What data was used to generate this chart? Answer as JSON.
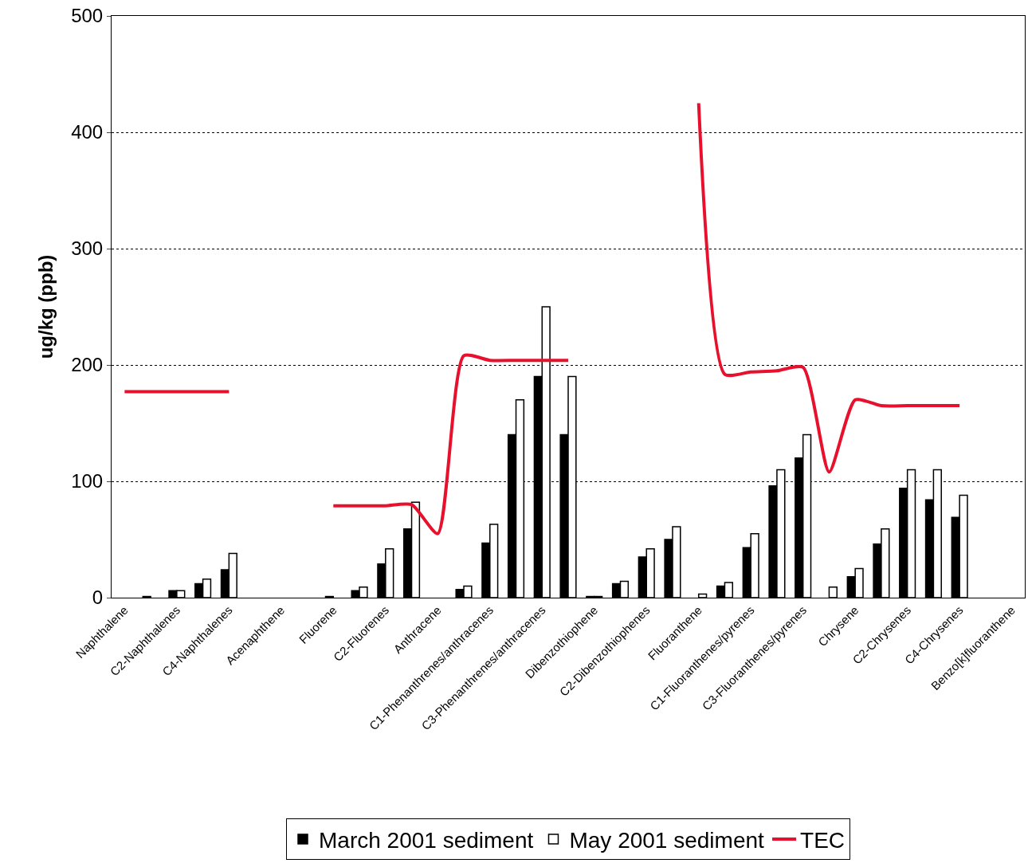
{
  "chart_data": {
    "type": "bar",
    "ylabel": "ug/kg (ppb)",
    "categories": [
      "Naphthalene",
      null,
      "C2-Naphthalenes",
      null,
      "C4-Naphthalenes",
      null,
      "Acenaphthene",
      null,
      "Fluorene",
      null,
      "C2-Fluorenes",
      null,
      "Anthracene",
      null,
      "C1-Phenanthrenes/anthracenes",
      null,
      "C3-Phenanthrenes/anthracenes",
      null,
      "Dibenzothiophene",
      null,
      "C2-Dibenzothiophenes",
      null,
      "Fluoranthene",
      null,
      "C1-Fluoranthenes/pyrenes",
      null,
      "C3-Fluoranthenes/pyrenes",
      null,
      "Chrysene",
      null,
      "C2-Chrysenes",
      null,
      "C4-Chrysenes",
      null,
      "Benzo[k]fluoranthene"
    ],
    "series": [
      {
        "name": "March 2001 sediment",
        "color": "#000000",
        "values": [
          null,
          1,
          6,
          12,
          24,
          null,
          null,
          null,
          1,
          6,
          29,
          59,
          null,
          7,
          47,
          140,
          190,
          140,
          1,
          12,
          35,
          50,
          null,
          10,
          43,
          96,
          120,
          null,
          18,
          46,
          94,
          84,
          69,
          null,
          null
        ]
      },
      {
        "name": "May 2001 sediment",
        "color": "#ffffff",
        "values": [
          null,
          null,
          6,
          16,
          38,
          null,
          null,
          null,
          null,
          9,
          42,
          82,
          null,
          10,
          63,
          170,
          250,
          190,
          1,
          14,
          42,
          61,
          3,
          13,
          55,
          110,
          140,
          9,
          25,
          59,
          110,
          110,
          88,
          null,
          null
        ]
      },
      {
        "name": "TEC",
        "type": "line",
        "color": "#e8112d",
        "values": [
          177,
          177,
          177,
          177,
          177,
          null,
          null,
          null,
          79,
          79,
          79,
          80,
          55,
          208,
          204,
          204,
          204,
          204,
          null,
          null,
          null,
          null,
          425,
          192,
          194,
          195,
          198,
          108,
          170,
          165,
          165,
          165,
          165,
          null,
          null
        ]
      }
    ],
    "ylim": [
      0,
      500
    ],
    "yticks": [
      0,
      100,
      200,
      300,
      400,
      500
    ],
    "grid": "y",
    "legend": "bottom"
  }
}
